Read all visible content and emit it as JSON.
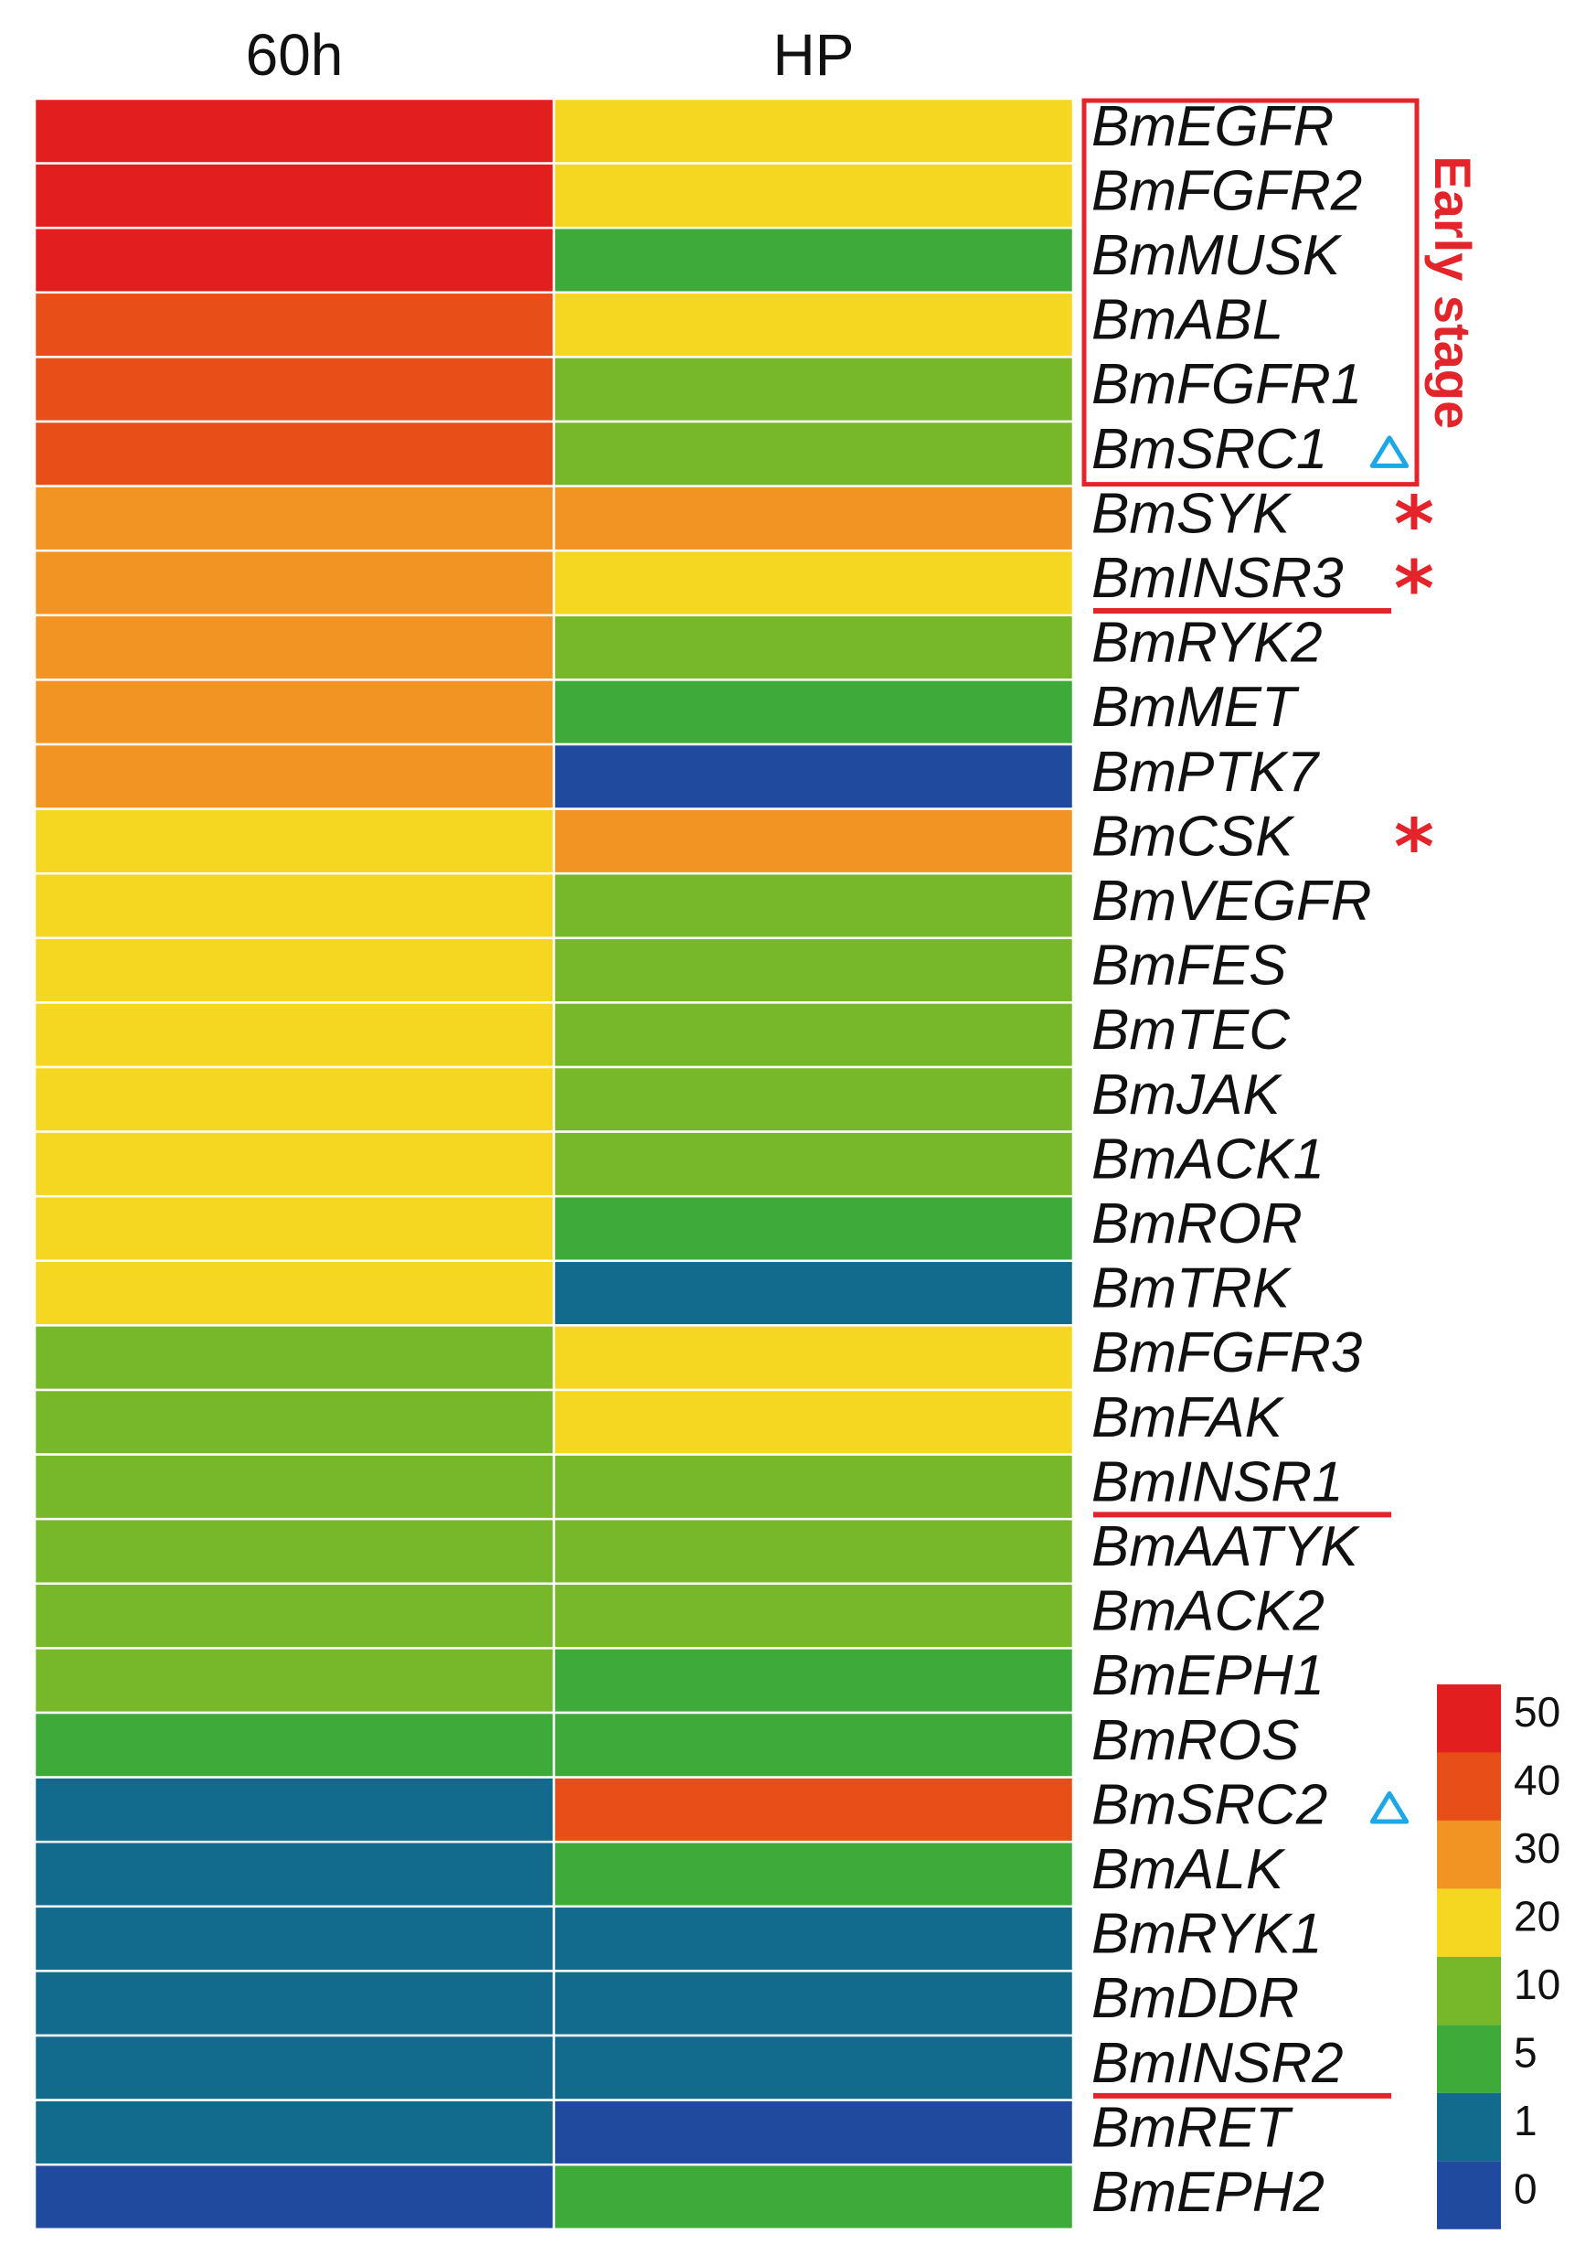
{
  "chart_data": {
    "type": "heatmap",
    "columns": [
      "60h",
      "HP"
    ],
    "rows": [
      "BmEGFR",
      "BmFGFR2",
      "BmMUSK",
      "BmABL",
      "BmFGFR1",
      "BmSRC1",
      "BmSYK",
      "BmINSR3",
      "BmRYK2",
      "BmMET",
      "BmPTK7",
      "BmCSK",
      "BmVEGFR",
      "BmFES",
      "BmTEC",
      "BmJAK",
      "BmACK1",
      "BmROR",
      "BmTRK",
      "BmFGFR3",
      "BmFAK",
      "BmINSR1",
      "BmAATYK",
      "BmACK2",
      "BmEPH1",
      "BmROS",
      "BmSRC2",
      "BmALK",
      "BmRYK1",
      "BmDDR",
      "BmINSR2",
      "BmRET",
      "BmEPH2"
    ],
    "values": [
      [
        50,
        20
      ],
      [
        50,
        20
      ],
      [
        50,
        5
      ],
      [
        40,
        20
      ],
      [
        40,
        10
      ],
      [
        40,
        10
      ],
      [
        30,
        30
      ],
      [
        30,
        20
      ],
      [
        30,
        10
      ],
      [
        30,
        5
      ],
      [
        30,
        0
      ],
      [
        20,
        30
      ],
      [
        20,
        10
      ],
      [
        20,
        10
      ],
      [
        20,
        10
      ],
      [
        20,
        10
      ],
      [
        20,
        10
      ],
      [
        20,
        5
      ],
      [
        20,
        1
      ],
      [
        10,
        20
      ],
      [
        10,
        20
      ],
      [
        10,
        10
      ],
      [
        10,
        10
      ],
      [
        10,
        10
      ],
      [
        10,
        5
      ],
      [
        5,
        5
      ],
      [
        1,
        40
      ],
      [
        1,
        5
      ],
      [
        1,
        1
      ],
      [
        1,
        1
      ],
      [
        1,
        1
      ],
      [
        1,
        0
      ],
      [
        0,
        5
      ]
    ],
    "legend": {
      "labels": [
        "50",
        "40",
        "30",
        "20",
        "10",
        "5",
        "1",
        "0"
      ],
      "colors": [
        "#e31e1e",
        "#e84e17",
        "#f29423",
        "#f5d620",
        "#77b82a",
        "#3eaa3a",
        "#126a8c",
        "#1f4a9e"
      ]
    },
    "annotations": {
      "box_label": "Early stage",
      "box_rows": [
        "BmEGFR",
        "BmFGFR2",
        "BmMUSK",
        "BmABL",
        "BmFGFR1",
        "BmSRC1"
      ],
      "asterisk_rows": [
        "BmSYK",
        "BmINSR3",
        "BmCSK"
      ],
      "asterisk_symbol": "*",
      "triangle_rows": [
        "BmSRC1",
        "BmSRC2"
      ],
      "underlined_rows": [
        "BmINSR3",
        "BmINSR1",
        "BmINSR2"
      ],
      "annotation_color": "#e3242b",
      "triangle_color": "#1ea7e6"
    }
  }
}
